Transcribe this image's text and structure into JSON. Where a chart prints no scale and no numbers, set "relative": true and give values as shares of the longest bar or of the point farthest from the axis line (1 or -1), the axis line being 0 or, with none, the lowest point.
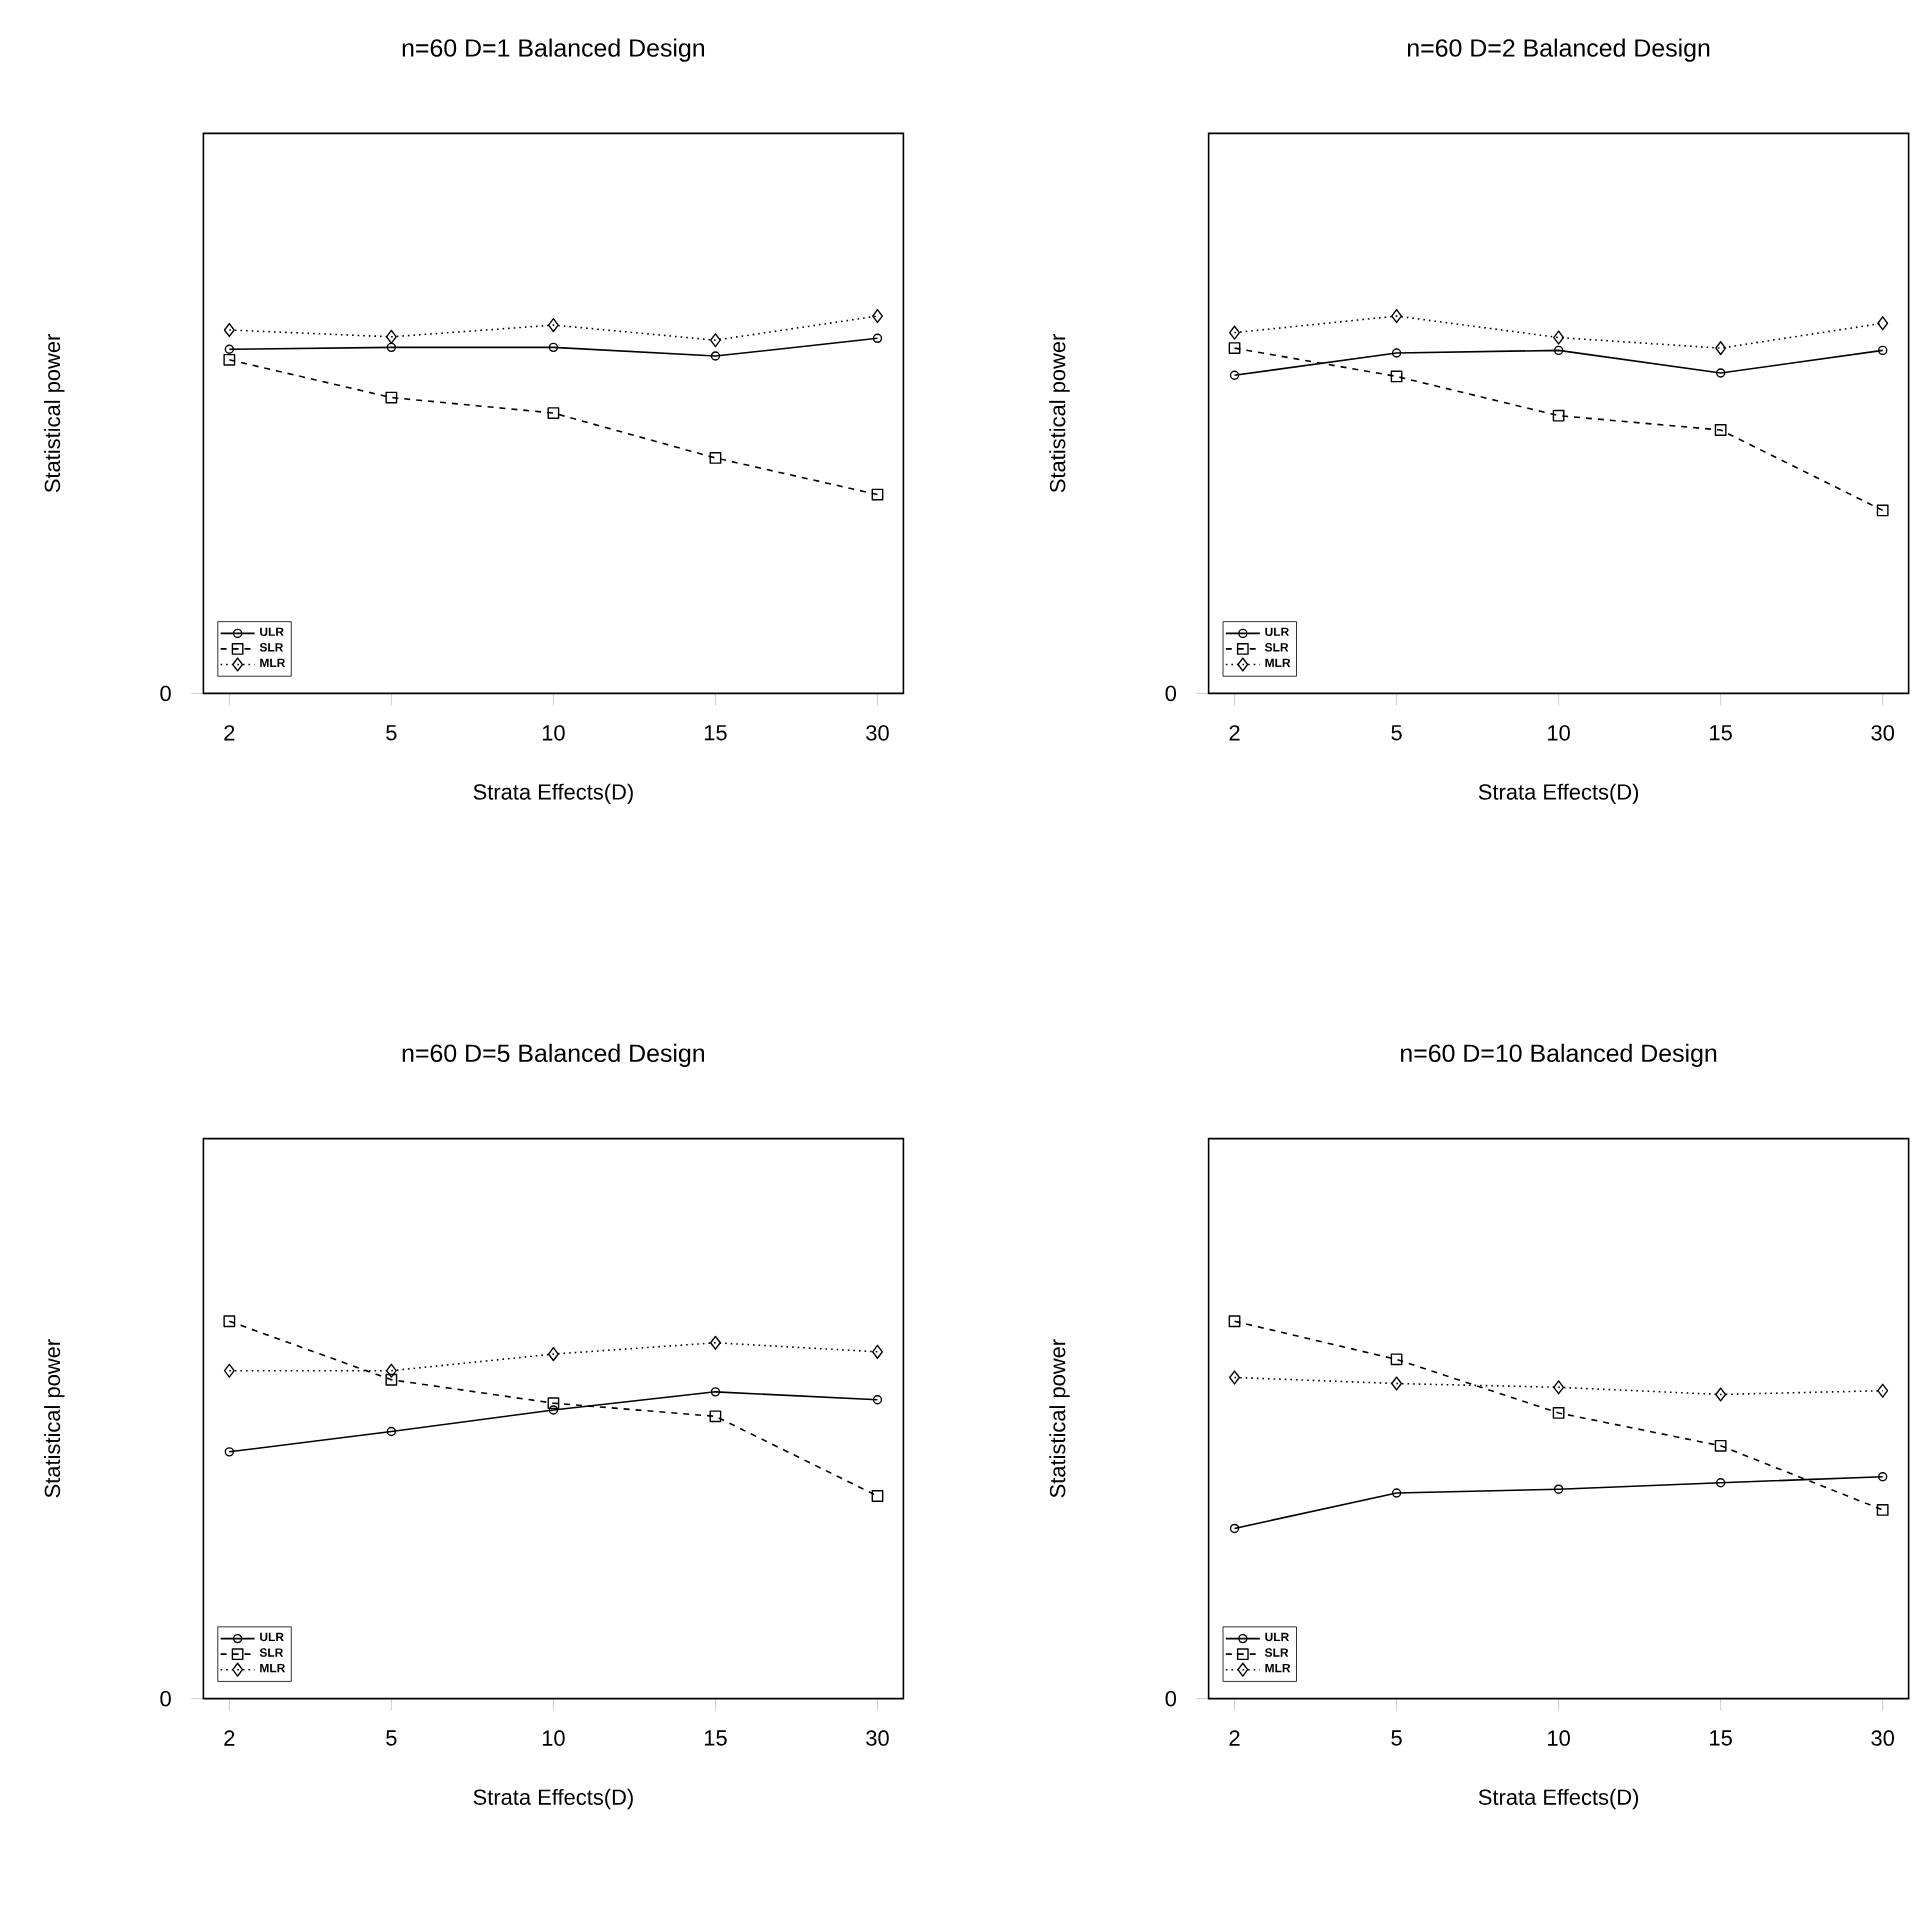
{
  "chart_data": [
    {
      "type": "line",
      "title": "n=60 D=1 Balanced Design",
      "xlabel": "Strata Effects(D)",
      "ylabel": "Statistical power",
      "categories": [
        "2",
        "5",
        "10",
        "15",
        "30"
      ],
      "relative": true,
      "annotations": [
        "0"
      ],
      "legend": "bottom left",
      "series": [
        {
          "name": "ULR",
          "color": "#000000",
          "marker": "circle",
          "line_style": "solid",
          "values": [
            0.912,
            0.917,
            0.917,
            0.894,
            0.941
          ]
        },
        {
          "name": "SLR",
          "color": "#000000",
          "marker": "square",
          "line_style": "dashed",
          "values": [
            0.884,
            0.784,
            0.743,
            0.624,
            0.527
          ]
        },
        {
          "name": "MLR",
          "color": "#000000",
          "marker": "diamond",
          "line_style": "dotted",
          "values": [
            0.963,
            0.945,
            0.976,
            0.936,
            1.0
          ]
        }
      ]
    },
    {
      "type": "line",
      "title": "n=60 D=2 Balanced Design",
      "xlabel": "Strata Effects(D)",
      "ylabel": "Statistical power",
      "categories": [
        "2",
        "5",
        "10",
        "15",
        "30"
      ],
      "relative": true,
      "annotations": [
        "0"
      ],
      "legend": "bottom left",
      "series": [
        {
          "name": "ULR",
          "color": "#000000",
          "marker": "circle",
          "line_style": "solid",
          "values": [
            0.843,
            0.902,
            0.909,
            0.849,
            0.909
          ]
        },
        {
          "name": "SLR",
          "color": "#000000",
          "marker": "square",
          "line_style": "dashed",
          "values": [
            0.915,
            0.84,
            0.736,
            0.698,
            0.485
          ]
        },
        {
          "name": "MLR",
          "color": "#000000",
          "marker": "diamond",
          "line_style": "dotted",
          "values": [
            0.956,
            1.0,
            0.943,
            0.915,
            0.981
          ]
        }
      ]
    },
    {
      "type": "line",
      "title": "n=60 D=5 Balanced Design",
      "xlabel": "Strata Effects(D)",
      "ylabel": "Statistical power",
      "categories": [
        "2",
        "5",
        "10",
        "15",
        "30"
      ],
      "relative": true,
      "annotations": [
        "0"
      ],
      "legend": "bottom left",
      "series": [
        {
          "name": "ULR",
          "color": "#000000",
          "marker": "circle",
          "line_style": "solid",
          "values": [
            0.654,
            0.708,
            0.765,
            0.813,
            0.792
          ]
        },
        {
          "name": "SLR",
          "color": "#000000",
          "marker": "square",
          "line_style": "dashed",
          "values": [
            1.0,
            0.845,
            0.783,
            0.748,
            0.537
          ]
        },
        {
          "name": "MLR",
          "color": "#000000",
          "marker": "diamond",
          "line_style": "dotted",
          "values": [
            0.869,
            0.869,
            0.913,
            0.943,
            0.919
          ]
        }
      ]
    },
    {
      "type": "line",
      "title": "n=60 D=10 Balanced Design",
      "xlabel": "Strata Effects(D)",
      "ylabel": "Statistical power",
      "categories": [
        "2",
        "5",
        "10",
        "15",
        "30"
      ],
      "relative": true,
      "annotations": [
        "0"
      ],
      "legend": "bottom left",
      "series": [
        {
          "name": "ULR",
          "color": "#000000",
          "marker": "circle",
          "line_style": "solid",
          "values": [
            0.451,
            0.545,
            0.555,
            0.572,
            0.588
          ]
        },
        {
          "name": "SLR",
          "color": "#000000",
          "marker": "square",
          "line_style": "dashed",
          "values": [
            1.0,
            0.899,
            0.757,
            0.67,
            0.5
          ]
        },
        {
          "name": "MLR",
          "color": "#000000",
          "marker": "diamond",
          "line_style": "dotted",
          "values": [
            0.851,
            0.835,
            0.825,
            0.806,
            0.816
          ]
        }
      ]
    }
  ]
}
